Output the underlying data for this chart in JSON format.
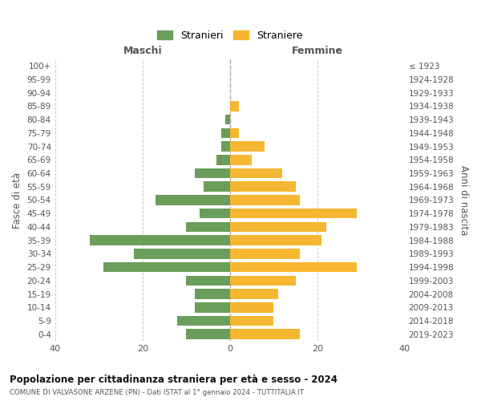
{
  "age_groups": [
    "100+",
    "95-99",
    "90-94",
    "85-89",
    "80-84",
    "75-79",
    "70-74",
    "65-69",
    "60-64",
    "55-59",
    "50-54",
    "45-49",
    "40-44",
    "35-39",
    "30-34",
    "25-29",
    "20-24",
    "15-19",
    "10-14",
    "5-9",
    "0-4"
  ],
  "birth_years": [
    "≤ 1923",
    "1924-1928",
    "1929-1933",
    "1934-1938",
    "1939-1943",
    "1944-1948",
    "1949-1953",
    "1954-1958",
    "1959-1963",
    "1964-1968",
    "1969-1973",
    "1974-1978",
    "1979-1983",
    "1984-1988",
    "1989-1993",
    "1994-1998",
    "1999-2003",
    "2004-2008",
    "2009-2013",
    "2014-2018",
    "2019-2023"
  ],
  "males": [
    0,
    0,
    0,
    0,
    1,
    2,
    2,
    3,
    8,
    6,
    17,
    7,
    10,
    32,
    22,
    29,
    10,
    8,
    8,
    12,
    10
  ],
  "females": [
    0,
    0,
    0,
    2,
    0,
    2,
    8,
    5,
    12,
    15,
    16,
    29,
    22,
    21,
    16,
    29,
    15,
    11,
    10,
    10,
    16
  ],
  "male_color": "#6a9e5a",
  "female_color": "#f5b731",
  "background_color": "#ffffff",
  "grid_color": "#cccccc",
  "title": "Popolazione per cittadinanza straniera per età e sesso - 2024",
  "subtitle": "COMUNE DI VALVASONE ARZENE (PN) - Dati ISTAT al 1° gennaio 2024 - TUTTITALIA.IT",
  "xlabel_left": "Maschi",
  "xlabel_right": "Femmine",
  "ylabel_left": "Fasce di età",
  "ylabel_right": "Anni di nascita",
  "legend_male": "Stranieri",
  "legend_female": "Straniere",
  "xlim": 40,
  "bar_height": 0.75
}
